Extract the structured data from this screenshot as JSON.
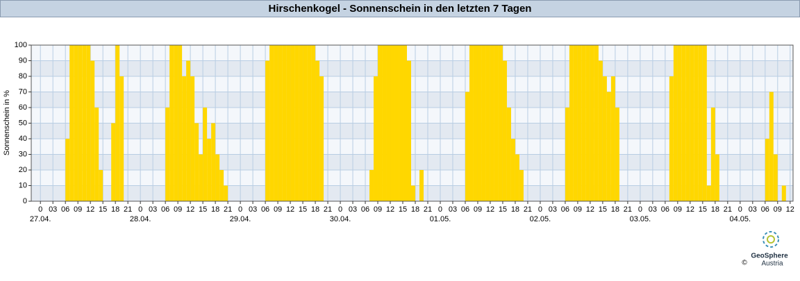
{
  "chart_data": {
    "type": "bar",
    "title": "Hirschenkogel - Sonnenschein in den letzten 7 Tagen",
    "ylabel": "Sonnenschein in %",
    "color": "#ffd700",
    "grid": true,
    "ylim": [
      0,
      100
    ],
    "yticks": [
      0,
      10,
      20,
      30,
      40,
      50,
      60,
      70,
      80,
      90,
      100
    ],
    "xlim": [
      -2.2,
      180.7
    ],
    "xticks": [
      {
        "value": 0,
        "label": "0"
      },
      {
        "value": 3,
        "label": "03"
      },
      {
        "value": 6,
        "label": "06"
      },
      {
        "value": 9,
        "label": "09"
      },
      {
        "value": 12,
        "label": "12"
      },
      {
        "value": 15,
        "label": "15"
      },
      {
        "value": 18,
        "label": "18"
      },
      {
        "value": 21,
        "label": "21"
      },
      {
        "value": 24,
        "label": "0"
      },
      {
        "value": 27,
        "label": "03"
      },
      {
        "value": 30,
        "label": "06"
      },
      {
        "value": 33,
        "label": "09"
      },
      {
        "value": 36,
        "label": "12"
      },
      {
        "value": 39,
        "label": "15"
      },
      {
        "value": 42,
        "label": "18"
      },
      {
        "value": 45,
        "label": "21"
      },
      {
        "value": 48,
        "label": "0"
      },
      {
        "value": 51,
        "label": "03"
      },
      {
        "value": 54,
        "label": "06"
      },
      {
        "value": 57,
        "label": "09"
      },
      {
        "value": 60,
        "label": "12"
      },
      {
        "value": 63,
        "label": "15"
      },
      {
        "value": 66,
        "label": "18"
      },
      {
        "value": 69,
        "label": "21"
      },
      {
        "value": 72,
        "label": "0"
      },
      {
        "value": 75,
        "label": "03"
      },
      {
        "value": 78,
        "label": "06"
      },
      {
        "value": 81,
        "label": "09"
      },
      {
        "value": 84,
        "label": "12"
      },
      {
        "value": 87,
        "label": "15"
      },
      {
        "value": 90,
        "label": "18"
      },
      {
        "value": 93,
        "label": "21"
      },
      {
        "value": 96,
        "label": "0"
      },
      {
        "value": 99,
        "label": "03"
      },
      {
        "value": 102,
        "label": "06"
      },
      {
        "value": 105,
        "label": "09"
      },
      {
        "value": 108,
        "label": "12"
      },
      {
        "value": 111,
        "label": "15"
      },
      {
        "value": 114,
        "label": "18"
      },
      {
        "value": 117,
        "label": "21"
      },
      {
        "value": 120,
        "label": "0"
      },
      {
        "value": 123,
        "label": "03"
      },
      {
        "value": 126,
        "label": "06"
      },
      {
        "value": 129,
        "label": "09"
      },
      {
        "value": 132,
        "label": "12"
      },
      {
        "value": 135,
        "label": "15"
      },
      {
        "value": 138,
        "label": "18"
      },
      {
        "value": 141,
        "label": "21"
      },
      {
        "value": 144,
        "label": "0"
      },
      {
        "value": 147,
        "label": "03"
      },
      {
        "value": 150,
        "label": "06"
      },
      {
        "value": 153,
        "label": "09"
      },
      {
        "value": 156,
        "label": "12"
      },
      {
        "value": 159,
        "label": "15"
      },
      {
        "value": 162,
        "label": "18"
      },
      {
        "value": 165,
        "label": "21"
      },
      {
        "value": 168,
        "label": "0"
      },
      {
        "value": 171,
        "label": "03"
      },
      {
        "value": 174,
        "label": "06"
      },
      {
        "value": 177,
        "label": "09"
      },
      {
        "value": 180,
        "label": "12"
      }
    ],
    "date_labels": [
      {
        "value": 0,
        "label": "27.04."
      },
      {
        "value": 24,
        "label": "28.04."
      },
      {
        "value": 48,
        "label": "29.04."
      },
      {
        "value": 72,
        "label": "30.04."
      },
      {
        "value": 96,
        "label": "01.05."
      },
      {
        "value": 120,
        "label": "02.05."
      },
      {
        "value": 144,
        "label": "03.05."
      },
      {
        "value": 168,
        "label": "04.05."
      }
    ],
    "x": [
      0,
      1,
      2,
      3,
      4,
      5,
      6,
      7,
      8,
      9,
      10,
      11,
      12,
      13,
      14,
      15,
      16,
      17,
      18,
      19,
      20,
      21,
      22,
      23,
      24,
      25,
      26,
      27,
      28,
      29,
      30,
      31,
      32,
      33,
      34,
      35,
      36,
      37,
      38,
      39,
      40,
      41,
      42,
      43,
      44,
      45,
      46,
      47,
      48,
      49,
      50,
      51,
      52,
      53,
      54,
      55,
      56,
      57,
      58,
      59,
      60,
      61,
      62,
      63,
      64,
      65,
      66,
      67,
      68,
      69,
      70,
      71,
      72,
      73,
      74,
      75,
      76,
      77,
      78,
      79,
      80,
      81,
      82,
      83,
      84,
      85,
      86,
      87,
      88,
      89,
      90,
      91,
      92,
      93,
      94,
      95,
      96,
      97,
      98,
      99,
      100,
      101,
      102,
      103,
      104,
      105,
      106,
      107,
      108,
      109,
      110,
      111,
      112,
      113,
      114,
      115,
      116,
      117,
      118,
      119,
      120,
      121,
      122,
      123,
      124,
      125,
      126,
      127,
      128,
      129,
      130,
      131,
      132,
      133,
      134,
      135,
      136,
      137,
      138,
      139,
      140,
      141,
      142,
      143,
      144,
      145,
      146,
      147,
      148,
      149,
      150,
      151,
      152,
      153,
      154,
      155,
      156,
      157,
      158,
      159,
      160,
      161,
      162,
      163,
      164,
      165,
      166,
      167,
      168,
      169,
      170,
      171,
      172,
      173,
      174,
      175,
      176,
      177,
      178,
      179,
      180
    ],
    "values": [
      0,
      0,
      0,
      0,
      0,
      0,
      40,
      100,
      100,
      100,
      100,
      100,
      90,
      60,
      20,
      0,
      0,
      50,
      100,
      80,
      0,
      0,
      0,
      0,
      0,
      0,
      0,
      0,
      0,
      0,
      60,
      100,
      100,
      100,
      80,
      90,
      80,
      50,
      30,
      60,
      40,
      50,
      30,
      20,
      10,
      0,
      0,
      0,
      0,
      0,
      0,
      0,
      0,
      0,
      90,
      100,
      100,
      100,
      100,
      100,
      100,
      100,
      100,
      100,
      100,
      100,
      90,
      80,
      0,
      0,
      0,
      0,
      0,
      0,
      0,
      0,
      0,
      0,
      0,
      20,
      80,
      100,
      100,
      100,
      100,
      100,
      100,
      100,
      90,
      10,
      0,
      20,
      0,
      0,
      0,
      0,
      0,
      0,
      0,
      0,
      0,
      0,
      70,
      100,
      100,
      100,
      100,
      100,
      100,
      100,
      100,
      90,
      60,
      40,
      30,
      20,
      0,
      0,
      0,
      0,
      0,
      0,
      0,
      0,
      0,
      0,
      60,
      100,
      100,
      100,
      100,
      100,
      100,
      100,
      90,
      80,
      70,
      80,
      60,
      0,
      0,
      0,
      0,
      0,
      0,
      0,
      0,
      0,
      0,
      0,
      0,
      80,
      100,
      100,
      100,
      100,
      100,
      100,
      100,
      100,
      10,
      60,
      30,
      0,
      0,
      0,
      0,
      0,
      0,
      0,
      0,
      0,
      0,
      0,
      40,
      70,
      30,
      0,
      10,
      0,
      0
    ]
  },
  "logo": {
    "name": "GeoSphere",
    "sub": "Austria",
    "copyright": "©"
  }
}
